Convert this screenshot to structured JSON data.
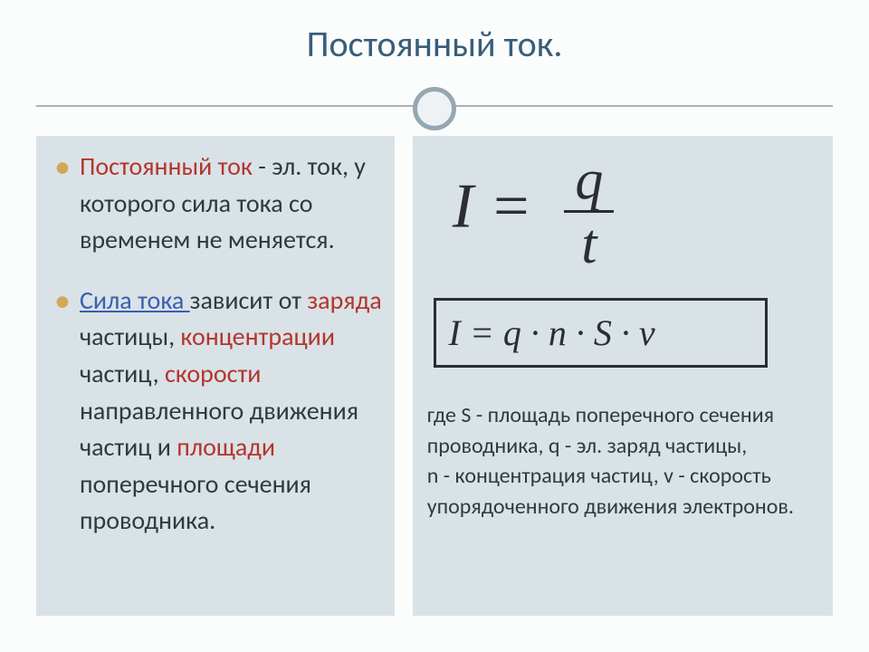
{
  "colors": {
    "title_color": "#385d7a",
    "body_text": "#2f3a3f",
    "divider": "#a6b3bd",
    "ring_border": "#94a7b3",
    "ring_bg": "#eef2f5",
    "panel_bg": "#d9e2e7",
    "bullet_dot": "#d2a856",
    "accent_red": "#b4352d",
    "accent_blue": "#3a5fb0",
    "formula_text": "#2b2e31",
    "slide_bg": "#fbfcfc"
  },
  "title": "Постоянный ток.",
  "bullets": {
    "b1": {
      "term": "Постоянный ток",
      "rest1": " - эл. ток, у которого сила тока со временем не меняется."
    },
    "b2": {
      "term": "Сила тока ",
      "rest1": "зависит от ",
      "w1": "заряда",
      "rest2": " частицы, ",
      "w2": "концентрации",
      "rest3": " частиц, ",
      "w3": "скорости",
      "rest4": " направленного движения частиц и ",
      "w4": "площади",
      "rest5": " поперечного сечения проводника."
    }
  },
  "formula_main": {
    "lhs": "I",
    "eq": " = ",
    "num": "q",
    "den": "t"
  },
  "formula_box": "I = q · n · S · v",
  "explain": "где S - площадь поперечного сечения проводника, q - эл. заряд частицы,\nn - концентрация частиц, v - скорость упорядоченного движения электронов."
}
